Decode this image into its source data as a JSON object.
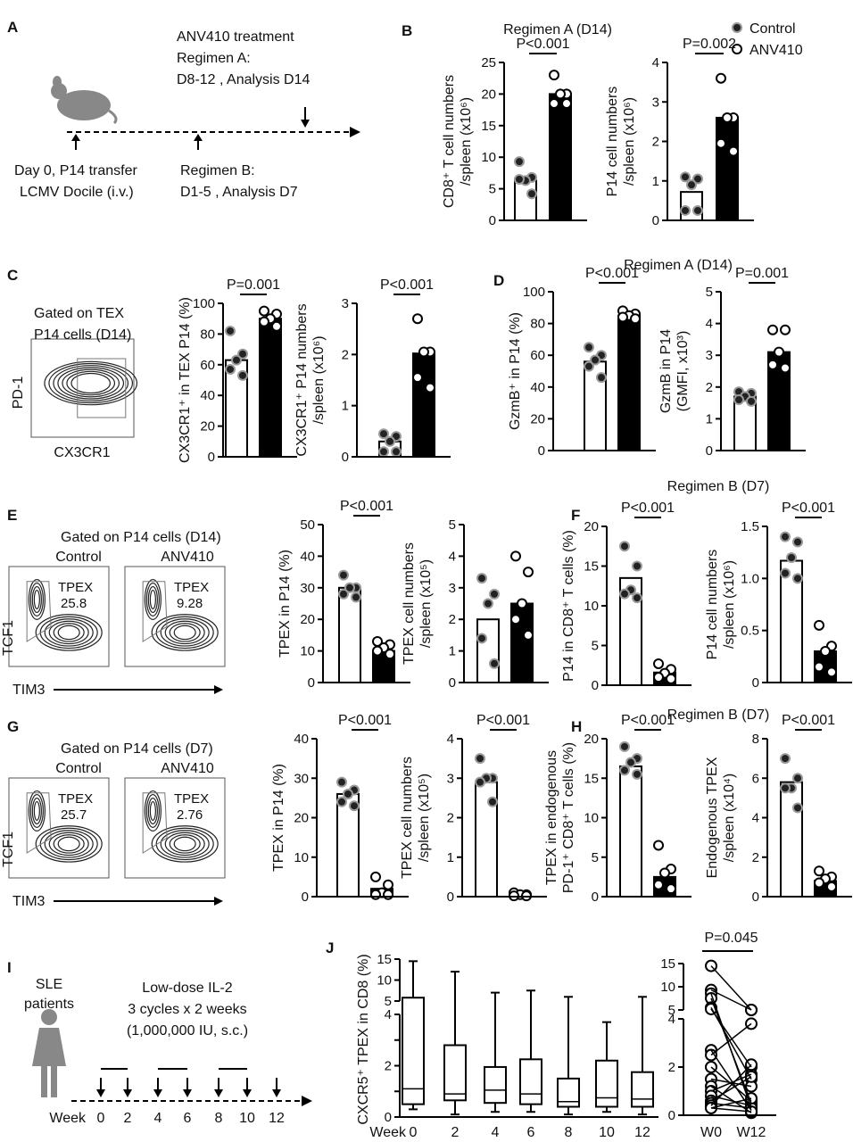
{
  "panel_letters": [
    "A",
    "B",
    "C",
    "D",
    "E",
    "F",
    "G",
    "H",
    "I",
    "J"
  ],
  "colors": {
    "control_fill": "#222222",
    "control_rim": "#9a9a9a",
    "anv_fill": "#ffffff",
    "anv_bar": "#000000",
    "ctrl_bar": "#ffffff"
  },
  "legend": {
    "control": "Control",
    "anv410": "ANV410"
  },
  "regimen_titles": {
    "b": "Regimen A (D14)",
    "d": "Regimen A (D14)",
    "f": "Regimen B (D7)",
    "h": "Regimen B (D7)"
  },
  "panel_a": {
    "treatment": "ANV410 treatment",
    "regA": "Regimen A:",
    "regA_detail": "D8-12 , Analysis D14",
    "day0": "Day 0, P14 transfer",
    "lcmv": "LCMV Docile (i.v.)",
    "regB": "Regimen B:",
    "regB_detail": "D1-5 , Analysis D7",
    "icon": "mouse-icon"
  },
  "panel_c": {
    "gate1": "Gated on TEX",
    "gate2": "P14 cells (D14)",
    "yaxis": "PD-1",
    "xaxis": "CX3CR1"
  },
  "panel_e": {
    "gate": "Gated on P14 cells (D14)",
    "control": "Control",
    "anv": "ANV410",
    "gate_name": "TPEX",
    "control_value": "25.8",
    "anv_value": "9.28",
    "yaxis": "TCF1",
    "xaxis": "TIM3"
  },
  "panel_g": {
    "gate": "Gated on P14 cells (D7)",
    "control": "Control",
    "anv": "ANV410",
    "gate_name": "TPEX",
    "control_value": "25.7",
    "anv_value": "2.76",
    "yaxis": "TCF1",
    "xaxis": "TIM3"
  },
  "panel_i": {
    "patients1": "SLE",
    "patients2": "patients",
    "therapy": "Low-dose IL-2",
    "cycles": "3 cycles x 2 weeks",
    "dose": "(1,000,000 IU, s.c.)",
    "week_label": "Week",
    "weeks": [
      "0",
      "2",
      "4",
      "6",
      "8",
      "10",
      "12"
    ],
    "icon": "person-icon"
  },
  "chart_data": [
    {
      "type": "bar",
      "panel": "B",
      "ylabel": [
        "CD8⁺ T cell numbers",
        "/spleen (x10⁶)"
      ],
      "ylim": [
        0,
        25
      ],
      "yticks": [
        "0",
        "5",
        "10",
        "15",
        "20",
        "25"
      ],
      "pvalue": "P<0.001",
      "series": [
        {
          "name": "Control",
          "mean": 6.3,
          "points": [
            9.3,
            6.8,
            6.3,
            6.5,
            4.2
          ]
        },
        {
          "name": "ANV410",
          "mean": 20,
          "points": [
            23,
            20,
            20,
            18.5,
            18.5
          ]
        }
      ]
    },
    {
      "type": "bar",
      "panel": "B",
      "ylabel": [
        "P14 cell numbers",
        "/spleen (x10⁶)"
      ],
      "ylim": [
        0,
        4
      ],
      "yticks": [
        "0",
        "1",
        "2",
        "3",
        "4"
      ],
      "pvalue": "P=0.002",
      "series": [
        {
          "name": "Control",
          "mean": 0.72,
          "points": [
            1.1,
            1.05,
            0.9,
            0.25,
            0.25
          ]
        },
        {
          "name": "ANV410",
          "mean": 2.6,
          "points": [
            3.6,
            2.6,
            2.6,
            1.95,
            1.75
          ]
        }
      ]
    },
    {
      "type": "bar",
      "panel": "C",
      "ylabel": [
        "CX3CR1⁺ in TEX P14 (%)"
      ],
      "ylim": [
        0,
        100
      ],
      "yticks": [
        "0",
        "20",
        "40",
        "60",
        "80",
        "100"
      ],
      "pvalue": "P=0.001",
      "series": [
        {
          "name": "Control",
          "mean": 63,
          "points": [
            82,
            67,
            63,
            57,
            53
          ]
        },
        {
          "name": "ANV410",
          "mean": 90,
          "points": [
            95,
            93,
            90,
            88,
            85
          ]
        }
      ]
    },
    {
      "type": "bar",
      "panel": "C",
      "ylabel": [
        "CX3CR1⁺ P14 numbers",
        "/spleen (x10⁶)"
      ],
      "ylim": [
        0,
        3
      ],
      "yticks": [
        "0",
        "1",
        "2",
        "3"
      ],
      "pvalue": "P<0.001",
      "series": [
        {
          "name": "Control",
          "mean": 0.3,
          "points": [
            0.45,
            0.4,
            0.3,
            0.1,
            0.1
          ]
        },
        {
          "name": "ANV410",
          "mean": 2.02,
          "points": [
            2.7,
            2.05,
            2.05,
            1.55,
            1.35
          ]
        }
      ]
    },
    {
      "type": "bar",
      "panel": "D",
      "ylabel": [
        "GzmB⁺ in P14 (%)"
      ],
      "ylim": [
        0,
        100
      ],
      "yticks": [
        "0",
        "20",
        "40",
        "60",
        "80",
        "100"
      ],
      "pvalue": "P<0.001",
      "series": [
        {
          "name": "Control",
          "mean": 56,
          "points": [
            65,
            60,
            57,
            53,
            46
          ]
        },
        {
          "name": "ANV410",
          "mean": 85,
          "points": [
            88,
            86,
            85,
            84,
            83
          ]
        }
      ]
    },
    {
      "type": "bar",
      "panel": "D",
      "ylabel": [
        "GzmB in P14",
        "(GMFI, x10³)"
      ],
      "ylim": [
        0,
        5
      ],
      "yticks": [
        "0",
        "1",
        "2",
        "3",
        "4",
        "5"
      ],
      "pvalue": "P=0.001",
      "series": [
        {
          "name": "Control",
          "mean": 1.7,
          "points": [
            1.85,
            1.8,
            1.7,
            1.6,
            1.55
          ]
        },
        {
          "name": "ANV410",
          "mean": 3.1,
          "points": [
            3.8,
            3.8,
            3.1,
            2.7,
            2.6
          ]
        }
      ]
    },
    {
      "type": "bar",
      "panel": "E",
      "ylabel": [
        "TPEX in P14 (%)"
      ],
      "ylim": [
        0,
        50
      ],
      "yticks": [
        "0",
        "10",
        "20",
        "30",
        "40",
        "50"
      ],
      "pvalue": "P<0.001",
      "series": [
        {
          "name": "Control",
          "mean": 30,
          "points": [
            34,
            30,
            30,
            28,
            27
          ]
        },
        {
          "name": "ANV410",
          "mean": 10,
          "points": [
            13,
            12,
            11,
            10,
            9
          ]
        }
      ]
    },
    {
      "type": "bar",
      "panel": "E",
      "ylabel": [
        "TPEX cell numbers",
        "/spleen (x10⁵)"
      ],
      "ylim": [
        0,
        5
      ],
      "yticks": [
        "0",
        "1",
        "2",
        "3",
        "4",
        "5"
      ],
      "pvalue": "",
      "series": [
        {
          "name": "Control",
          "mean": 2.0,
          "points": [
            3.3,
            2.8,
            2.5,
            1.4,
            0.6
          ]
        },
        {
          "name": "ANV410",
          "mean": 2.5,
          "points": [
            4.0,
            3.5,
            2.5,
            2.0,
            1.5
          ]
        }
      ]
    },
    {
      "type": "bar",
      "panel": "F",
      "ylabel": [
        "P14 in CD8⁺ T cells (%)"
      ],
      "ylim": [
        0,
        20
      ],
      "yticks": [
        "0",
        "5",
        "10",
        "15",
        "20"
      ],
      "pvalue": "P<0.001",
      "series": [
        {
          "name": "Control",
          "mean": 13.5,
          "points": [
            17.5,
            15,
            12,
            11.5,
            11
          ]
        },
        {
          "name": "ANV410",
          "mean": 1.6,
          "points": [
            2.7,
            2,
            1.5,
            1,
            0.8
          ]
        }
      ]
    },
    {
      "type": "bar",
      "panel": "F",
      "ylabel": [
        "P14 cell numbers",
        "/spleen (x10⁶)"
      ],
      "ylim": [
        0,
        1.5
      ],
      "yticks": [
        "0",
        "0.5",
        "1.0",
        "1.5"
      ],
      "pvalue": "P<0.001",
      "series": [
        {
          "name": "Control",
          "mean": 1.17,
          "points": [
            1.4,
            1.35,
            1.2,
            1.05,
            1.0
          ]
        },
        {
          "name": "ANV410",
          "mean": 0.3,
          "points": [
            0.55,
            0.35,
            0.3,
            0.15,
            0.1
          ]
        }
      ]
    },
    {
      "type": "bar",
      "panel": "G",
      "ylabel": [
        "TPEX in P14 (%)"
      ],
      "ylim": [
        0,
        40
      ],
      "yticks": [
        "0",
        "10",
        "20",
        "30",
        "40"
      ],
      "pvalue": "P<0.001",
      "series": [
        {
          "name": "Control",
          "mean": 26,
          "points": [
            29,
            27,
            26,
            24,
            23
          ]
        },
        {
          "name": "ANV410",
          "mean": 2,
          "points": [
            5,
            3,
            1,
            0.5,
            0.5
          ]
        }
      ]
    },
    {
      "type": "bar",
      "panel": "G",
      "ylabel": [
        "TPEX cell numbers",
        "/spleen (x10⁵)"
      ],
      "ylim": [
        0,
        4
      ],
      "yticks": [
        "0",
        "1",
        "2",
        "3",
        "4"
      ],
      "pvalue": "P<0.001",
      "series": [
        {
          "name": "Control",
          "mean": 2.9,
          "points": [
            3.5,
            3,
            3,
            2.9,
            2.4
          ]
        },
        {
          "name": "ANV410",
          "mean": 0.05,
          "points": [
            0.1,
            0.05,
            0.05,
            0.02,
            0.02
          ]
        }
      ]
    },
    {
      "type": "bar",
      "panel": "H",
      "ylabel": [
        "TPEX in endogenous",
        "PD-1⁺ CD8⁺ T cells (%)"
      ],
      "ylim": [
        0,
        20
      ],
      "yticks": [
        "0",
        "5",
        "10",
        "15",
        "20"
      ],
      "pvalue": "P<0.001",
      "series": [
        {
          "name": "Control",
          "mean": 16.5,
          "points": [
            19,
            17.5,
            17,
            16,
            15.5
          ]
        },
        {
          "name": "ANV410",
          "mean": 2.5,
          "points": [
            6.5,
            3.5,
            3,
            1.5,
            1
          ]
        }
      ]
    },
    {
      "type": "bar",
      "panel": "H",
      "ylabel": [
        "Endogenous TPEX",
        "/spleen (x10⁴)"
      ],
      "ylim": [
        0,
        8
      ],
      "yticks": [
        "0",
        "2",
        "4",
        "6",
        "8"
      ],
      "pvalue": "P<0.001",
      "series": [
        {
          "name": "Control",
          "mean": 5.8,
          "points": [
            7,
            6,
            5.5,
            5.5,
            4.5
          ]
        },
        {
          "name": "ANV410",
          "mean": 0.8,
          "points": [
            1.3,
            1,
            0.9,
            0.7,
            0.5
          ]
        }
      ]
    },
    {
      "type": "box",
      "panel": "J",
      "ylabel": "CXCR5⁺ TPEX in CD8 (%)",
      "xlabel_prefix": "Week",
      "categories": [
        "0",
        "2",
        "4",
        "6",
        "8",
        "10",
        "12"
      ],
      "yticks_upper": [
        "5",
        "10",
        "15"
      ],
      "yticks_lower": [
        "0",
        "2",
        "4"
      ],
      "axis_break": [
        4,
        5
      ],
      "boxes": [
        {
          "min": 0.3,
          "q1": 0.5,
          "median": 1.1,
          "q3": 5.8,
          "max": 14.5
        },
        {
          "min": 0.1,
          "q1": 0.65,
          "median": 0.9,
          "q3": 2.8,
          "max": 12
        },
        {
          "min": 0.2,
          "q1": 0.55,
          "median": 1.05,
          "q3": 1.95,
          "max": 7
        },
        {
          "min": 0.2,
          "q1": 0.5,
          "median": 0.9,
          "q3": 2.25,
          "max": 7.5
        },
        {
          "min": 0.1,
          "q1": 0.4,
          "median": 0.6,
          "q3": 1.5,
          "max": 6
        },
        {
          "min": 0.2,
          "q1": 0.4,
          "median": 0.75,
          "q3": 2.2,
          "max": 3.7
        },
        {
          "min": 0.1,
          "q1": 0.4,
          "median": 0.7,
          "q3": 1.75,
          "max": 6
        }
      ]
    },
    {
      "type": "paired",
      "panel": "J",
      "categories": [
        "W0",
        "W12"
      ],
      "pvalue": "P=0.045",
      "yticks_upper": [
        "5",
        "10",
        "15"
      ],
      "yticks_lower": [
        "0",
        "2",
        "4"
      ],
      "axis_break": [
        4,
        5
      ],
      "w0": [
        14.5,
        9.3,
        8.5,
        7.5,
        5.5,
        5.2,
        2.7,
        2.5,
        2.0,
        1.5,
        1.2,
        1.0,
        0.8,
        0.6,
        0.5,
        0.4,
        0.3,
        0.3
      ],
      "w12": [
        5,
        4.8,
        0.3,
        0.5,
        1.5,
        2.0,
        0.2,
        3.8,
        0.6,
        1.2,
        0.1,
        1.7,
        0.4,
        1.6,
        0.3,
        2.1,
        0.7,
        0.15
      ]
    }
  ]
}
